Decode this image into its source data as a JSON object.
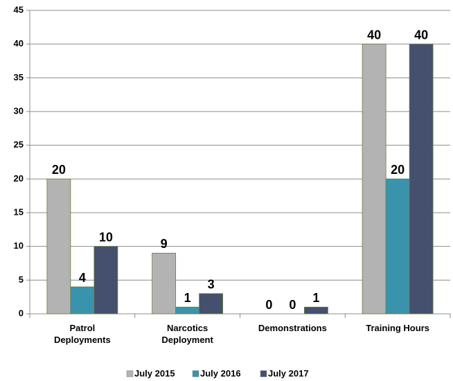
{
  "chart_data": {
    "type": "bar",
    "categories": [
      "Patrol Deployments",
      "Narcotics Deployment",
      "Demonstrations",
      "Training Hours"
    ],
    "series": [
      {
        "name": "July 2015",
        "color": "#b3b3b3",
        "values": [
          20,
          9,
          0,
          40
        ]
      },
      {
        "name": "July 2016",
        "color": "#3a93ad",
        "values": [
          4,
          1,
          0,
          20
        ]
      },
      {
        "name": "July 2017",
        "color": "#44506e",
        "values": [
          10,
          3,
          1,
          40
        ]
      }
    ],
    "ylim": [
      0,
      45
    ],
    "yticks": [
      0,
      5,
      10,
      15,
      20,
      25,
      30,
      35,
      40,
      45
    ],
    "grid": true,
    "legend": "bottom"
  }
}
